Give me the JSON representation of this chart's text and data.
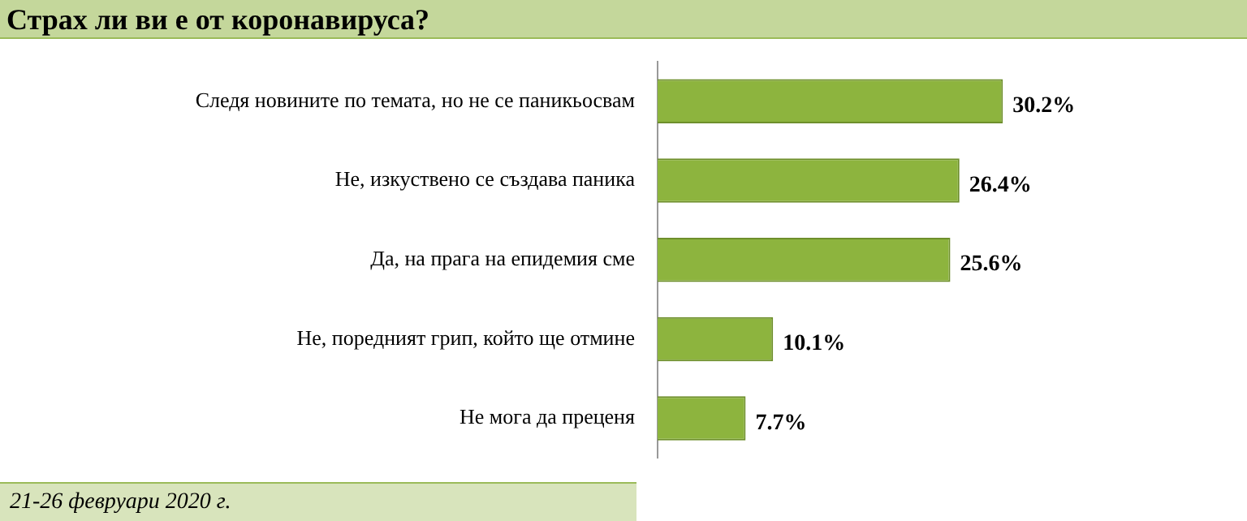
{
  "chart_data": {
    "type": "bar",
    "orientation": "horizontal",
    "title": "Страх ли ви е от коронавируса?",
    "categories": [
      "Следя новините по темата, но не се паникьосвам",
      "Не, изкуствено се създава паника",
      "Да, на прага на епидемия сме",
      "Не, поредният грип, който ще отмине",
      "Не мога да преценя"
    ],
    "values": [
      30.2,
      26.4,
      25.6,
      10.1,
      7.7
    ],
    "value_labels": [
      "30.2%",
      "26.4%",
      "25.6%",
      "10.1%",
      "7.7%"
    ],
    "color": "#8db43e",
    "grid": false,
    "legend": false,
    "tick_labels": "y",
    "annotations": [
      "21-26 февруари 2020 г."
    ]
  }
}
